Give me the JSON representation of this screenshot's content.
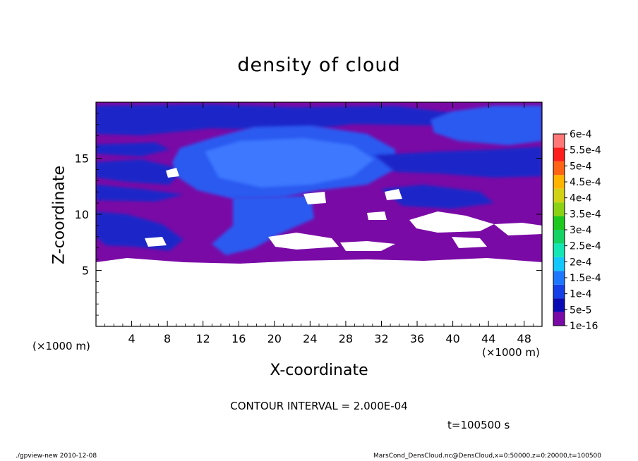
{
  "title": "density of cloud",
  "chart_data": {
    "type": "heatmap",
    "title": "density of cloud",
    "xlabel": "X-coordinate",
    "ylabel": "Z-coordinate",
    "x_unit": "(×1000 m)",
    "xlim": [
      0,
      50
    ],
    "ylim": [
      0,
      20
    ],
    "x_ticks": [
      "4",
      "8",
      "12",
      "16",
      "20",
      "24",
      "28",
      "32",
      "36",
      "40",
      "44",
      "48"
    ],
    "y_ticks": [
      "5",
      "10",
      "15"
    ],
    "colorbar_labels": [
      "1e-16",
      "5e-5",
      "1e-4",
      "1.5e-4",
      "2e-4",
      "2.5e-4",
      "3e-4",
      "3.5e-4",
      "4e-4",
      "4.5e-4",
      "5e-4",
      "5.5e-4",
      "6e-4"
    ],
    "colorbar_colors": [
      "#7a0aa6",
      "#0a0ab4",
      "#1440e6",
      "#1e78ff",
      "#14c8ff",
      "#14e6b4",
      "#14d264",
      "#1ec81e",
      "#8cd214",
      "#d2d214",
      "#ffb400",
      "#ff6414",
      "#ff1e1e",
      "#ff7878"
    ],
    "contour_interval": "CONTOUR INTERVAL = 2.000E-04",
    "time": "t=100500 s",
    "field_colors": {
      "background": "#7a0aa6",
      "low": "#1e28c8",
      "mid": "#2a5af0",
      "high": "#3c78ff",
      "empty": "#ffffff"
    }
  },
  "footer": {
    "left": "./gpview-new   2010-12-08",
    "right": "MarsCond_DensCloud.nc@DensCloud,x=0:50000,z=0:20000,t=100500"
  }
}
